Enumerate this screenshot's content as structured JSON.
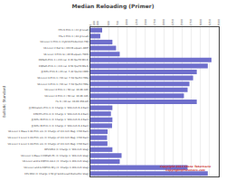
{
  "chart_data": {
    "type": "bar",
    "orientation": "horizontal",
    "title": "Median Reloading (Primer)",
    "ylabel": "Ballistic Standard",
    "categories": [
      "FPV-6 Prim 1 (.22 gr-Lead)",
      "FPa-1 Prim 1 (.44 gr-Lead)",
      "VA Level 1 Prim 1 (Hybrid-Production FMJ)",
      "VA Level 2 Ball Si (.303 M-square AWP)",
      "VA Level 3 Prim Si (.40 M-square TWO)",
      "EQPath-Prim 1 (.223 cal. 0.36 fps/70 MH-6)",
      "EQPath-Prim 1 (.223 cal. 0.56 fps/70 MS-6)",
      "JJJ Rifle Prim 6 (.20 cal. 7-42 fps/18 HMO)",
      "VA Level 4-Prim 1 (.50 cal. 7-54 fps/53 FMG)",
      "VA Level 3-Prim 1 (.50 cal. 7-54 fps/53 FMG)",
      "VA Level 4 Prim 1 (.50 cal. 10-06.385)",
      "VA Level 4 Prim 2 (.50 cal. 10-06.385)",
      "Flv 6 (.30 cal. 30-06 X50-AP)",
      "JJJ Miniature-Prm 1 (3: Charge 1 '104-inch R-4 Bact)",
      "EPR/FPv-Prm 4 (3: Charge 1 '104-inch R-4 Bact)",
      "JJJ Rifle M-Prim 1 (3: Charge 1 '104-inch R-4 Bact)",
      "JJJ Rifle M-Prim 3 (3: Charge 2 '104-inch R-4 Bact)",
      "VA Level 1 Mass 1-VA Prim x/x (3: Charge of 3/4 inch Mag. H'60 Bact)",
      "VA Level 1 Level 1-VA Prim x/x (3: Charge of 3/4 inch Mag. H'60 Bact)",
      "VA Level 1 Level 1-VA Prim x/x (3: Charge of 3/4 inch Mag. H'60 Bact)",
      "RPV1054 (3: Charge 1 '104-inch Stag)",
      "VA Level 1-Mass 3 EQPath PC (3: Charge 1 '104-inch Stag)",
      "VA Level and-S EQPrim AA-1 (3: Charge 1-104-inch Stag)",
      "VA Level and-S EQPrim M/y (3: Charge 3-104-inch Stag)",
      "EPx D64 (3: Charge 3.50 gr Solid-Lead Bismuthic Stag)"
    ],
    "values": [
      320,
      270,
      600,
      700,
      800,
      3300,
      3200,
      2900,
      2800,
      2700,
      2650,
      2550,
      2900,
      600,
      560,
      600,
      590,
      470,
      455,
      465,
      600,
      850,
      800,
      2650,
      3200
    ],
    "color": "#6f6fcc",
    "xlim": [
      0,
      3500
    ],
    "xticks": [
      0,
      100,
      200,
      500,
      750,
      1000,
      1250,
      1500,
      1750,
      2000,
      2250,
      2500,
      2750,
      3000,
      3250,
      3500
    ],
    "grid": true,
    "annotations": [
      {
        "text": "Copyright 2014 Stone Tabernacle\nCopyright@Forensics.com",
        "x": 2600,
        "y": 23.2,
        "color": "#cc3333"
      }
    ]
  }
}
